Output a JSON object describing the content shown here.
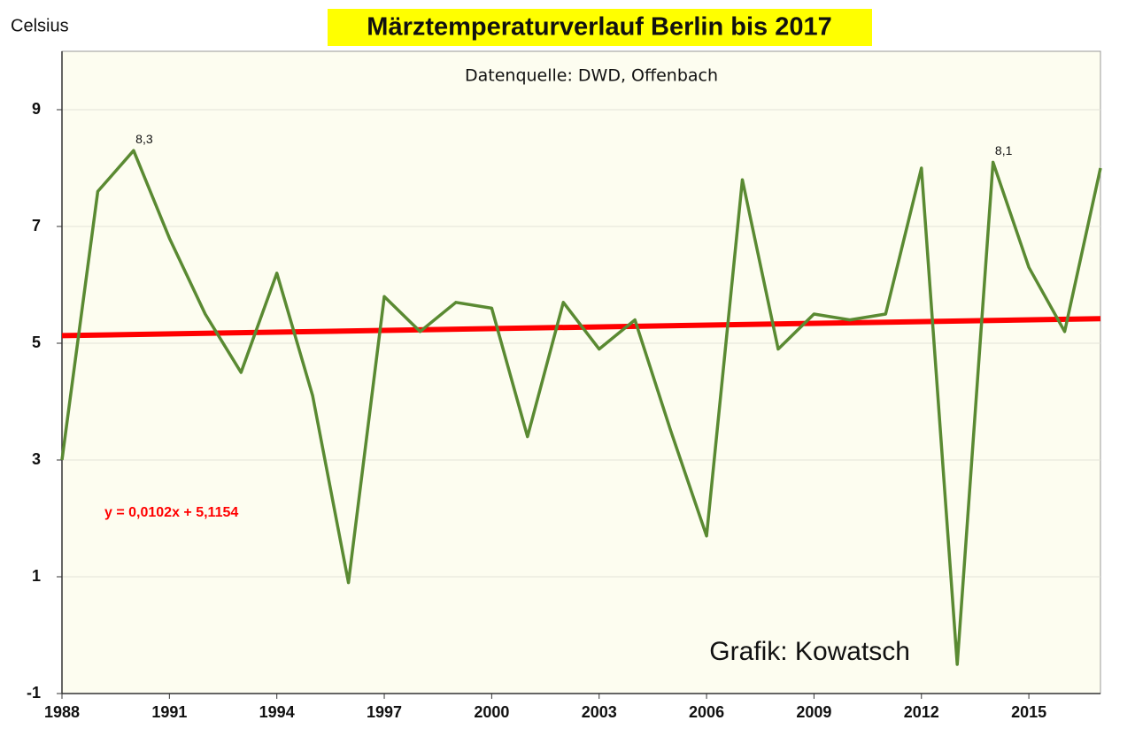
{
  "chart_data": {
    "type": "line",
    "title": "Märztemperaturverlauf Berlin bis 2017",
    "subtitle": "Datenquelle: DWD, Offenbach",
    "y_label": "Celsius",
    "credit": "Grafik: Kowatsch",
    "x": [
      1988,
      1989,
      1990,
      1991,
      1992,
      1993,
      1994,
      1995,
      1996,
      1997,
      1998,
      1999,
      2000,
      2001,
      2002,
      2003,
      2004,
      2005,
      2006,
      2007,
      2008,
      2009,
      2010,
      2011,
      2012,
      2013,
      2014,
      2015,
      2016,
      2017
    ],
    "series": [
      {
        "name": "März",
        "color": "#5a8a32",
        "values": [
          3.0,
          7.6,
          8.3,
          6.8,
          5.5,
          4.5,
          6.2,
          4.1,
          0.9,
          5.8,
          5.2,
          5.7,
          5.6,
          3.4,
          5.7,
          4.9,
          5.4,
          3.5,
          1.7,
          7.8,
          4.9,
          5.5,
          5.4,
          5.5,
          8.0,
          -0.5,
          8.1,
          6.3,
          5.2,
          8.0
        ]
      }
    ],
    "data_labels": [
      {
        "x": 1990,
        "y": 8.3,
        "label": "8,3"
      },
      {
        "x": 2014,
        "y": 8.1,
        "label": "8,1"
      }
    ],
    "trendline": {
      "equation": "y = 0,0102x + 5,1154",
      "color": "#ff0000",
      "x": [
        1988,
        2017
      ],
      "values": [
        5.13,
        5.42
      ]
    },
    "xlim": [
      1988,
      2017
    ],
    "xticks": [
      1988,
      1991,
      1994,
      1997,
      2000,
      2003,
      2006,
      2009,
      2012,
      2015
    ],
    "ylim": [
      -1,
      10
    ],
    "yticks": [
      -1,
      1,
      3,
      5,
      7,
      9
    ],
    "grid": true
  }
}
